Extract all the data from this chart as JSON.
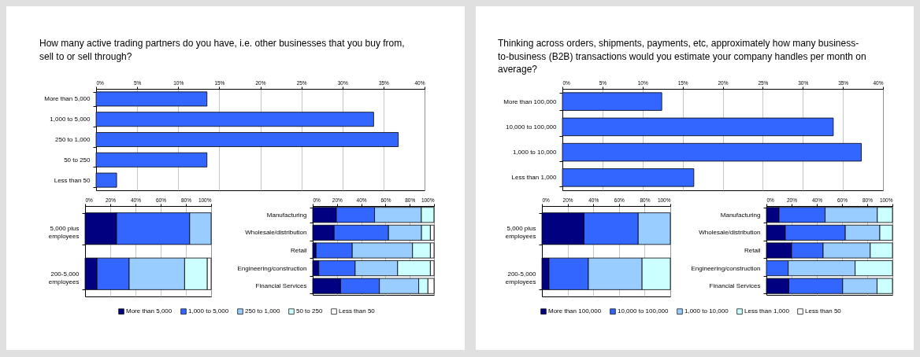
{
  "chart_data": [
    {
      "type": "bar",
      "orientation": "horizontal",
      "title": "How many active trading partners do you have, i.e. other businesses that you buy from, sell to or sell through?",
      "categories": [
        "More than 5,000",
        "1,000 to 5,000",
        "250 to 1,000",
        "50 to 250",
        "Less than 50"
      ],
      "values": [
        13.5,
        33.8,
        36.8,
        13.5,
        2.5
      ],
      "color": "#3366ff",
      "xlim": [
        0,
        40
      ],
      "xticks": [
        {
          "value": 0,
          "label": "0%"
        },
        {
          "value": 5,
          "label": "5%"
        },
        {
          "value": 10,
          "label": "10%"
        },
        {
          "value": 15,
          "label": "15%"
        },
        {
          "value": 20,
          "label": "20%"
        },
        {
          "value": 25,
          "label": "25%"
        },
        {
          "value": 30,
          "label": "30%"
        },
        {
          "value": 35,
          "label": "35%"
        },
        {
          "value": 40,
          "label": "40%"
        }
      ],
      "grid": "x"
    },
    {
      "type": "bar",
      "orientation": "horizontal",
      "stacked": true,
      "categories": [
        "5,000 plus employees",
        "200-5,000 employees"
      ],
      "series": [
        {
          "color": "#000080",
          "values": [
            25,
            9.5
          ]
        },
        {
          "color": "#3366ff",
          "values": [
            58,
            25.5
          ]
        },
        {
          "color": "#99ccff",
          "values": [
            17,
            44
          ]
        },
        {
          "color": "#ccffff",
          "values": [
            0,
            18
          ]
        },
        {
          "color": "#ffffff",
          "values": [
            0,
            3
          ]
        }
      ],
      "xlim": [
        0,
        100
      ],
      "xticks": [
        {
          "value": 0,
          "label": "0%"
        },
        {
          "value": 20,
          "label": "20%"
        },
        {
          "value": 40,
          "label": "40%"
        },
        {
          "value": 60,
          "label": "60%"
        },
        {
          "value": 80,
          "label": "80%"
        },
        {
          "value": 100,
          "label": "100%"
        }
      ],
      "grid": "x"
    },
    {
      "type": "bar",
      "orientation": "horizontal",
      "stacked": true,
      "categories": [
        "Manufacturing",
        "Wholesale/distribution",
        "Retail",
        "Engineering/construction",
        "Financial Services"
      ],
      "series": [
        {
          "name": "More than 5,000",
          "color": "#000080",
          "values": [
            19.5,
            17.7,
            2.8,
            5,
            23
          ]
        },
        {
          "name": "1,000 to 5,000",
          "color": "#3366ff",
          "values": [
            31.5,
            44.8,
            29.8,
            30,
            32
          ]
        },
        {
          "name": "250 to 1,000",
          "color": "#99ccff",
          "values": [
            38.6,
            27.2,
            49.7,
            35,
            32.4
          ]
        },
        {
          "name": "50 to 250",
          "color": "#ccffff",
          "values": [
            10.3,
            7.3,
            14.7,
            27,
            7.6
          ]
        },
        {
          "name": "Less than 50",
          "color": "#ffffff",
          "values": [
            0,
            3,
            3,
            3,
            5
          ]
        }
      ],
      "xlim": [
        0,
        100
      ],
      "xticks": [
        {
          "value": 0,
          "label": "0%"
        },
        {
          "value": 20,
          "label": "20%"
        },
        {
          "value": 40,
          "label": "40%"
        },
        {
          "value": 60,
          "label": "60%"
        },
        {
          "value": 80,
          "label": "80%"
        },
        {
          "value": 100,
          "label": "100%"
        }
      ],
      "grid": "x",
      "legend": "bottom"
    },
    {
      "type": "bar",
      "orientation": "horizontal",
      "title": "Thinking across orders, shipments, payments, etc, approximately how many business-to-business (B2B) transactions would you estimate your company handles per month on average?",
      "categories": [
        "More than 100,000",
        "10,000 to 100,000",
        "1,000 to 10,000",
        "Less than 1,000"
      ],
      "values": [
        12.4,
        33.8,
        37.3,
        16.4
      ],
      "color": "#3366ff",
      "xlim": [
        0,
        40
      ],
      "xticks": [
        {
          "value": 0,
          "label": "0%"
        },
        {
          "value": 5,
          "label": "5%"
        },
        {
          "value": 10,
          "label": "10%"
        },
        {
          "value": 15,
          "label": "15%"
        },
        {
          "value": 20,
          "label": "20%"
        },
        {
          "value": 25,
          "label": "25%"
        },
        {
          "value": 30,
          "label": "30%"
        },
        {
          "value": 35,
          "label": "35%"
        },
        {
          "value": 40,
          "label": "40%"
        }
      ],
      "grid": "x"
    },
    {
      "type": "bar",
      "orientation": "horizontal",
      "stacked": true,
      "categories": [
        "5,000 plus employees",
        "200-5,000 employees"
      ],
      "series": [
        {
          "color": "#000080",
          "values": [
            32.8,
            5.5
          ]
        },
        {
          "color": "#3366ff",
          "values": [
            42.2,
            30.7
          ]
        },
        {
          "color": "#99ccff",
          "values": [
            25,
            41.8
          ]
        },
        {
          "color": "#ccffff",
          "values": [
            0,
            22
          ]
        },
        {
          "color": "#ffffff",
          "values": [
            0,
            0
          ]
        }
      ],
      "xlim": [
        0,
        100
      ],
      "xticks": [
        {
          "value": 0,
          "label": "0%"
        },
        {
          "value": 20,
          "label": "20%"
        },
        {
          "value": 40,
          "label": "40%"
        },
        {
          "value": 60,
          "label": "60%"
        },
        {
          "value": 80,
          "label": "80%"
        },
        {
          "value": 100,
          "label": "100%"
        }
      ],
      "grid": "x"
    },
    {
      "type": "bar",
      "orientation": "horizontal",
      "stacked": true,
      "categories": [
        "Manufacturing",
        "Wholesale/distribution",
        "Retail",
        "Engineering/construction",
        "Financial Services"
      ],
      "series": [
        {
          "name": "More than 100,000",
          "color": "#000080",
          "values": [
            10,
            15,
            20,
            0,
            17.8
          ]
        },
        {
          "name": "10,000 to 100,000",
          "color": "#3366ff",
          "values": [
            36.6,
            47.6,
            25,
            17.3,
            42.7
          ]
        },
        {
          "name": "1,000 to 10,000",
          "color": "#99ccff",
          "values": [
            41.4,
            27.4,
            37.4,
            53.1,
            27.3
          ]
        },
        {
          "name": "Less than 1,000",
          "color": "#ccffff",
          "values": [
            12,
            10,
            17.6,
            29.6,
            12.2
          ]
        },
        {
          "name": "Less than 50",
          "color": "#ffffff",
          "values": [
            0,
            0,
            0,
            0,
            0
          ]
        }
      ],
      "xlim": [
        0,
        100
      ],
      "xticks": [
        {
          "value": 0,
          "label": "0%"
        },
        {
          "value": 20,
          "label": "20%"
        },
        {
          "value": 40,
          "label": "40%"
        },
        {
          "value": 60,
          "label": "60%"
        },
        {
          "value": 80,
          "label": "80%"
        },
        {
          "value": 100,
          "label": "100%"
        }
      ],
      "grid": "x",
      "legend": "bottom"
    }
  ]
}
